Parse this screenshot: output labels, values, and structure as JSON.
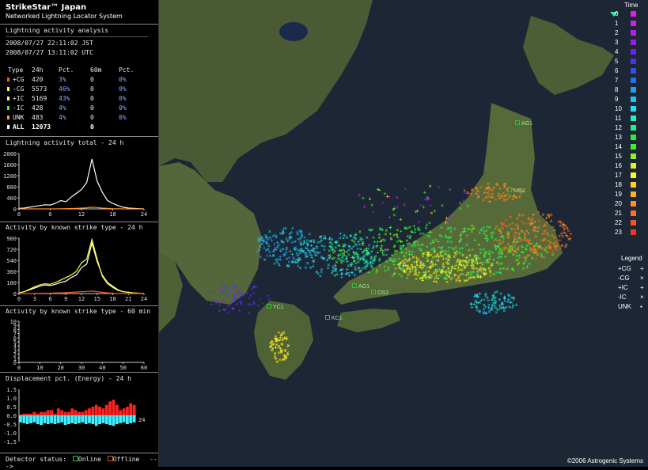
{
  "header": {
    "title": "StrikeStar™ Japan",
    "subtitle": "Networked Lightning Locator System"
  },
  "analysis": {
    "section_title": "Lightning activity analysis",
    "time_jst": "2008/07/27 22:11:02 JST",
    "time_utc": "2008/07/27 13:11:02 UTC"
  },
  "table": {
    "headers": [
      "Type",
      "24h",
      "Pct.",
      "60m",
      "Pct."
    ],
    "rows": [
      {
        "type": "+CG",
        "h24": "420",
        "pct24": "3%",
        "m60": "0",
        "pct60": "0%",
        "color": "#ff5a20"
      },
      {
        "type": "-CG",
        "h24": "5573",
        "pct24": "46%",
        "m60": "0",
        "pct60": "0%",
        "color": "#ffff30"
      },
      {
        "type": "+IC",
        "h24": "5169",
        "pct24": "43%",
        "m60": "0",
        "pct60": "0%",
        "color": "#ffff60"
      },
      {
        "type": "-IC",
        "h24": "428",
        "pct24": "4%",
        "m60": "0",
        "pct60": "0%",
        "color": "#30ff30"
      },
      {
        "type": "UNK",
        "h24": "483",
        "pct24": "4%",
        "m60": "0",
        "pct60": "0%",
        "color": "#ff9a30"
      }
    ],
    "total": {
      "type": "ALL",
      "h24": "12073",
      "m60": "0"
    }
  },
  "chart_titles": {
    "total": "Lightning activity total - 24 h",
    "known24": "Activity by known strike type - 24 h",
    "known60": "Activity by known strike type - 60 min",
    "displacement": "Displacement pct. (Energy) - 24 h"
  },
  "chart_data": [
    {
      "type": "line",
      "title": "Lightning activity total - 24 h",
      "x_ticks": [
        "0",
        "6",
        "12",
        "18",
        "24"
      ],
      "y_ticks": [
        "2000",
        "1600",
        "1200",
        "800",
        "400",
        "0"
      ],
      "ylim": [
        0,
        2000
      ],
      "x": [
        0,
        1,
        2,
        3,
        4,
        5,
        6,
        7,
        8,
        9,
        10,
        11,
        12,
        13,
        14,
        15,
        16,
        17,
        18,
        19,
        20,
        21,
        22,
        23,
        24
      ],
      "series": [
        {
          "values": [
            20,
            30,
            60,
            90,
            120,
            150,
            140,
            200,
            300,
            260,
            420,
            560,
            700,
            950,
            1800,
            1000,
            600,
            300,
            200,
            120,
            60,
            30,
            20,
            10,
            0
          ],
          "color": "#ffffff"
        },
        {
          "values": [
            0,
            0,
            0,
            0,
            0,
            0,
            0,
            0,
            5,
            10,
            15,
            20,
            30,
            40,
            60,
            50,
            30,
            20,
            10,
            5,
            0,
            0,
            0,
            0,
            0
          ],
          "color": "#ff8c20"
        }
      ]
    },
    {
      "type": "line",
      "title": "Activity by known strike type - 24 h",
      "x_ticks": [
        "0",
        "3",
        "6",
        "9",
        "12",
        "15",
        "18",
        "21",
        "24"
      ],
      "y_ticks": [
        "900",
        "720",
        "540",
        "360",
        "180",
        "0"
      ],
      "ylim": [
        0,
        900
      ],
      "x": [
        0,
        1,
        2,
        3,
        4,
        5,
        6,
        7,
        8,
        9,
        10,
        11,
        12,
        13,
        14,
        15,
        16,
        17,
        18,
        19,
        20,
        21,
        22,
        23,
        24
      ],
      "series": [
        {
          "values": [
            10,
            30,
            60,
            90,
            120,
            140,
            130,
            150,
            180,
            200,
            260,
            300,
            420,
            480,
            820,
            520,
            300,
            180,
            120,
            60,
            30,
            20,
            10,
            5,
            0
          ],
          "color": "#ffffff"
        },
        {
          "values": [
            10,
            30,
            70,
            110,
            140,
            160,
            150,
            180,
            220,
            260,
            300,
            360,
            500,
            560,
            880,
            560,
            280,
            160,
            100,
            50,
            30,
            20,
            10,
            5,
            0
          ],
          "color": "#ffff30"
        },
        {
          "values": [
            0,
            0,
            0,
            0,
            5,
            5,
            5,
            10,
            10,
            15,
            20,
            25,
            30,
            35,
            40,
            30,
            20,
            10,
            5,
            0,
            0,
            0,
            0,
            0,
            0
          ],
          "color": "#ff5a20"
        }
      ]
    },
    {
      "type": "line",
      "title": "Activity by known strike type - 60 min",
      "x_ticks": [
        "0",
        "10",
        "20",
        "30",
        "40",
        "50",
        "60"
      ],
      "y_ticks": [
        "10",
        "9",
        "8",
        "7",
        "6",
        "5",
        "4",
        "3",
        "2",
        "1",
        "0"
      ],
      "ylim": [
        0,
        10
      ],
      "series": []
    },
    {
      "type": "bar",
      "title": "Displacement pct. (Energy) - 24 h",
      "x_ticks": [
        "24"
      ],
      "y_ticks": [
        "1.5",
        "1.0",
        "0.5",
        "0.0",
        "-0.5",
        "-1.0",
        "-1.5"
      ],
      "ylim": [
        -1.5,
        1.5
      ],
      "pos_values": [
        0.05,
        0.1,
        0.1,
        0.1,
        0.2,
        0.1,
        0.2,
        0.2,
        0.3,
        0.3,
        0.1,
        0.4,
        0.3,
        0.2,
        0.2,
        0.4,
        0.3,
        0.2,
        0.2,
        0.3,
        0.4,
        0.5,
        0.6,
        0.5,
        0.4,
        0.6,
        0.8,
        0.9,
        0.6,
        0.3,
        0.4,
        0.5,
        0.7,
        0.6
      ],
      "neg_values": [
        -0.4,
        -0.45,
        -0.5,
        -0.45,
        -0.4,
        -0.5,
        -0.55,
        -0.45,
        -0.5,
        -0.45,
        -0.5,
        -0.45,
        -0.4,
        -0.55,
        -0.5,
        -0.45,
        -0.5,
        -0.45,
        -0.4,
        -0.5,
        -0.45,
        -0.5,
        -0.6,
        -0.5,
        -0.45,
        -0.5,
        -0.55,
        -0.6,
        -0.5,
        -0.45,
        -0.4,
        -0.5,
        -0.45,
        -0.4
      ],
      "pos_color": "#ff2020",
      "neg_color": "#40f0ff"
    }
  ],
  "status": {
    "label": "Detector status:",
    "online": "Online",
    "offline": "Offline",
    "arrow": "--->",
    "online_color": "#30c030",
    "offline_color": "#c06020"
  },
  "time_legend": {
    "title": "Time",
    "items": [
      {
        "label": "0",
        "color": "#e020e0"
      },
      {
        "label": "1",
        "color": "#d020e8"
      },
      {
        "label": "2",
        "color": "#b020f0"
      },
      {
        "label": "3",
        "color": "#9020f0"
      },
      {
        "label": "4",
        "color": "#6a20f0"
      },
      {
        "label": "5",
        "color": "#4a30f0"
      },
      {
        "label": "6",
        "color": "#3050f0"
      },
      {
        "label": "7",
        "color": "#2070f0"
      },
      {
        "label": "8",
        "color": "#20a0f0"
      },
      {
        "label": "9",
        "color": "#20c0f0"
      },
      {
        "label": "10",
        "color": "#20e0f0"
      },
      {
        "label": "11",
        "color": "#20f0c0"
      },
      {
        "label": "12",
        "color": "#20f080"
      },
      {
        "label": "13",
        "color": "#20f040"
      },
      {
        "label": "14",
        "color": "#40f020"
      },
      {
        "label": "15",
        "color": "#90f020"
      },
      {
        "label": "16",
        "color": "#e0f020"
      },
      {
        "label": "17",
        "color": "#ffff20"
      },
      {
        "label": "18",
        "color": "#ffd020"
      },
      {
        "label": "19",
        "color": "#ffb020"
      },
      {
        "label": "20",
        "color": "#ff9020"
      },
      {
        "label": "21",
        "color": "#ff7020"
      },
      {
        "label": "22",
        "color": "#ff5020"
      },
      {
        "label": "23",
        "color": "#ff3020"
      }
    ]
  },
  "symbol_legend": {
    "title": "Legend",
    "items": [
      {
        "label": "+CG",
        "symbol": "+"
      },
      {
        "label": "-CG",
        "symbol": "×"
      },
      {
        "label": "+IC",
        "symbol": "+"
      },
      {
        "label": "-IC",
        "symbol": "×"
      },
      {
        "label": "UNK",
        "symbol": "▪"
      }
    ]
  },
  "map": {
    "stations": [
      {
        "code": "AG1"
      },
      {
        "code": "MG1"
      },
      {
        "code": "AG1"
      },
      {
        "code": "OS2"
      },
      {
        "code": "YC1"
      },
      {
        "code": "KC1"
      }
    ],
    "copyright": "©2006 Astrogenic Systems"
  }
}
